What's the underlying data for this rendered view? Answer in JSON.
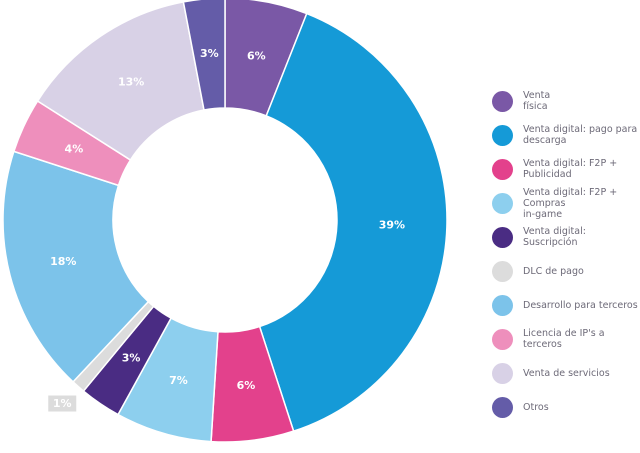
{
  "chart_data": {
    "type": "pie",
    "variant": "donut",
    "title": "",
    "slices": [
      {
        "label": "Venta\nfísica",
        "value": 6,
        "display": "6%",
        "color": "#7a58a6",
        "text_color": "#ffffff"
      },
      {
        "label": "Venta digital: pago para\ndescarga",
        "value": 39,
        "display": "39%",
        "color": "#159ad7",
        "text_color": "#ffffff"
      },
      {
        "label": "Venta digital: F2P +\nPublicidad",
        "value": 6,
        "display": "6%",
        "color": "#e3418c",
        "text_color": "#ffffff"
      },
      {
        "label": "Venta digital: F2P + Compras\nin-game",
        "value": 7,
        "display": "7%",
        "color": "#8dcfee",
        "text_color": "#ffffff"
      },
      {
        "label": "Venta digital: Suscripción",
        "value": 3,
        "display": "3%",
        "color": "#4a2c83",
        "text_color": "#ffffff"
      },
      {
        "label": "DLC de pago",
        "value": 1,
        "display": "1%",
        "color": "#dcdcdc",
        "text_color": "#ffffff"
      },
      {
        "label": "Desarrollo para terceros",
        "value": 18,
        "display": "18%",
        "color": "#7cc3ea",
        "text_color": "#ffffff"
      },
      {
        "label": "Licencia de IP's a terceros",
        "value": 4,
        "display": "4%",
        "color": "#ee8fbc",
        "text_color": "#ffffff"
      },
      {
        "label": "Venta de servicios",
        "value": 13,
        "display": "13%",
        "color": "#d8d1e6",
        "text_color": "#ffffff"
      },
      {
        "label": "Otros",
        "value": 3,
        "display": "3%",
        "color": "#645ca8",
        "text_color": "#ffffff"
      }
    ],
    "legend_position": "right"
  }
}
